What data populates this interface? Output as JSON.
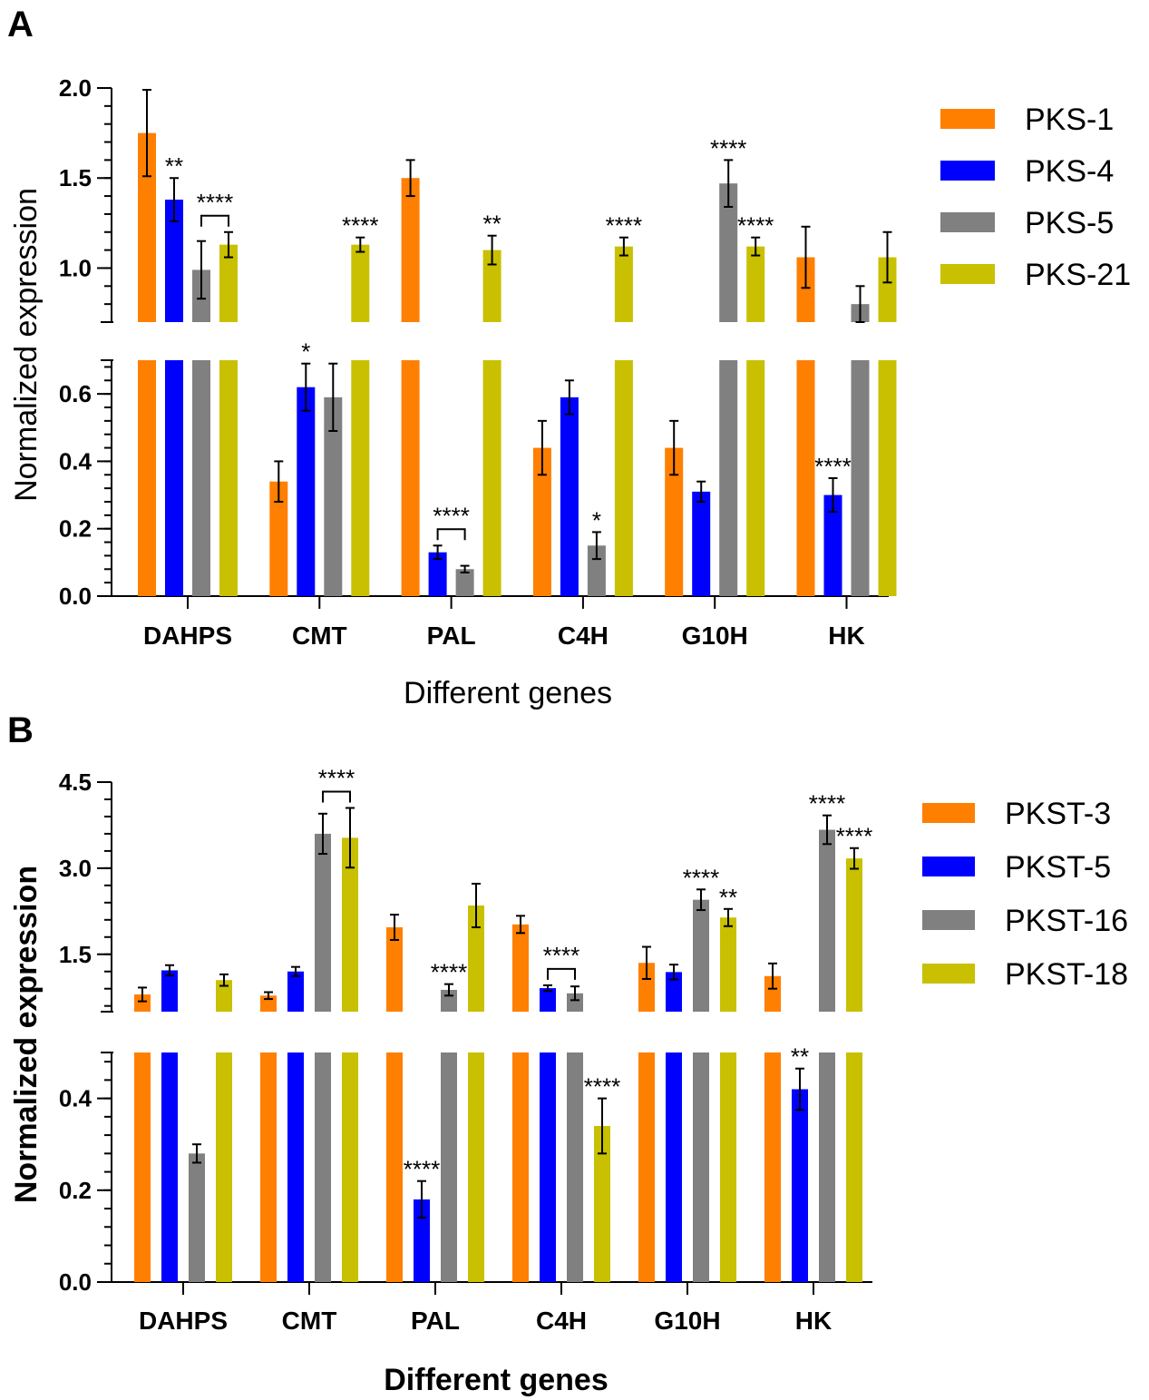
{
  "chart_data": [
    {
      "panel": "A",
      "type": "bar",
      "title": "",
      "xlabel": "Different genes",
      "ylabel": "Normalized expression",
      "categories": [
        "DAHPS",
        "CMT",
        "PAL",
        "C4H",
        "G10H",
        "HK"
      ],
      "y_axis_broken": true,
      "lower_ylim": [
        0,
        0.7
      ],
      "upper_ylim": [
        0.7,
        2.0
      ],
      "lower_ticks": [
        "0.0",
        "0.2",
        "0.4",
        "0.6"
      ],
      "upper_ticks": [
        "1.0",
        "1.5",
        "2.0"
      ],
      "series": [
        {
          "name": "PKS-1",
          "color": "#ff7f00",
          "values": [
            1.75,
            0.34,
            1.5,
            0.44,
            0.44,
            1.06
          ],
          "errors": [
            0.24,
            0.06,
            0.1,
            0.08,
            0.08,
            0.17
          ]
        },
        {
          "name": "PKS-4",
          "color": "#0000ff",
          "values": [
            1.38,
            0.62,
            0.13,
            0.59,
            0.31,
            0.3
          ],
          "errors": [
            0.12,
            0.07,
            0.02,
            0.05,
            0.03,
            0.05
          ]
        },
        {
          "name": "PKS-5",
          "color": "#808080",
          "values": [
            0.99,
            0.59,
            0.08,
            0.15,
            1.47,
            0.8
          ],
          "errors": [
            0.16,
            0.1,
            0.01,
            0.04,
            0.13,
            0.1
          ]
        },
        {
          "name": "PKS-21",
          "color": "#c8c000",
          "values": [
            1.13,
            1.13,
            1.1,
            1.12,
            1.12,
            1.06
          ],
          "errors": [
            0.07,
            0.04,
            0.08,
            0.05,
            0.05,
            0.14
          ]
        }
      ],
      "annotations": [
        {
          "text": "**",
          "category": "DAHPS",
          "series": 1
        },
        {
          "text": "****",
          "category": "DAHPS",
          "series": 3,
          "bracket_from": 2
        },
        {
          "text": "****",
          "category": "CMT",
          "series": 3
        },
        {
          "text": "*",
          "category": "CMT",
          "series": 1
        },
        {
          "text": "**",
          "category": "PAL",
          "series": 3
        },
        {
          "text": "****",
          "category": "PAL",
          "series": 2,
          "bracket_from": 1
        },
        {
          "text": "****",
          "category": "C4H",
          "series": 3
        },
        {
          "text": "*",
          "category": "C4H",
          "series": 2
        },
        {
          "text": "****",
          "category": "G10H",
          "series": 2
        },
        {
          "text": "****",
          "category": "G10H",
          "series": 3
        },
        {
          "text": "****",
          "category": "HK",
          "series": 1
        }
      ]
    },
    {
      "panel": "B",
      "type": "bar",
      "title": "",
      "xlabel": "Different genes",
      "ylabel": "Normalized expression",
      "categories": [
        "DAHPS",
        "CMT",
        "PAL",
        "C4H",
        "G10H",
        "HK"
      ],
      "y_axis_broken": true,
      "lower_ylim": [
        0,
        0.5
      ],
      "upper_ylim": [
        0.5,
        4.5
      ],
      "lower_ticks": [
        "0.0",
        "0.2",
        "0.4"
      ],
      "upper_ticks": [
        "1.5",
        "3.0",
        "4.5"
      ],
      "series": [
        {
          "name": "PKST-3",
          "color": "#ff7f00",
          "values": [
            0.8,
            0.78,
            1.97,
            2.02,
            1.35,
            1.12
          ],
          "errors": [
            0.12,
            0.06,
            0.22,
            0.15,
            0.28,
            0.22
          ]
        },
        {
          "name": "PKST-5",
          "color": "#0000ff",
          "values": [
            1.22,
            1.2,
            0.18,
            0.91,
            1.19,
            0.42
          ],
          "errors": [
            0.09,
            0.08,
            0.04,
            0.05,
            0.13,
            0.045
          ]
        },
        {
          "name": "PKST-16",
          "color": "#808080",
          "values": [
            0.28,
            3.6,
            0.88,
            0.82,
            2.45,
            3.67
          ],
          "errors": [
            0.02,
            0.35,
            0.1,
            0.12,
            0.18,
            0.25
          ]
        },
        {
          "name": "PKST-18",
          "color": "#c8c000",
          "values": [
            1.05,
            3.53,
            2.35,
            0.34,
            2.14,
            3.17
          ],
          "errors": [
            0.1,
            0.52,
            0.38,
            0.06,
            0.15,
            0.18
          ]
        }
      ],
      "annotations": [
        {
          "text": "****",
          "category": "CMT",
          "series": 3,
          "bracket_from": 2
        },
        {
          "text": "****",
          "category": "PAL",
          "series": 2
        },
        {
          "text": "****",
          "category": "PAL",
          "series": 1
        },
        {
          "text": "****",
          "category": "C4H",
          "series": 2,
          "bracket_from": 1
        },
        {
          "text": "****",
          "category": "C4H",
          "series": 3
        },
        {
          "text": "****",
          "category": "G10H",
          "series": 2
        },
        {
          "text": "**",
          "category": "G10H",
          "series": 3
        },
        {
          "text": "****",
          "category": "HK",
          "series": 2
        },
        {
          "text": "****",
          "category": "HK",
          "series": 3
        },
        {
          "text": "**",
          "category": "HK",
          "series": 1
        }
      ]
    }
  ],
  "panel_letters": [
    "A",
    "B"
  ]
}
